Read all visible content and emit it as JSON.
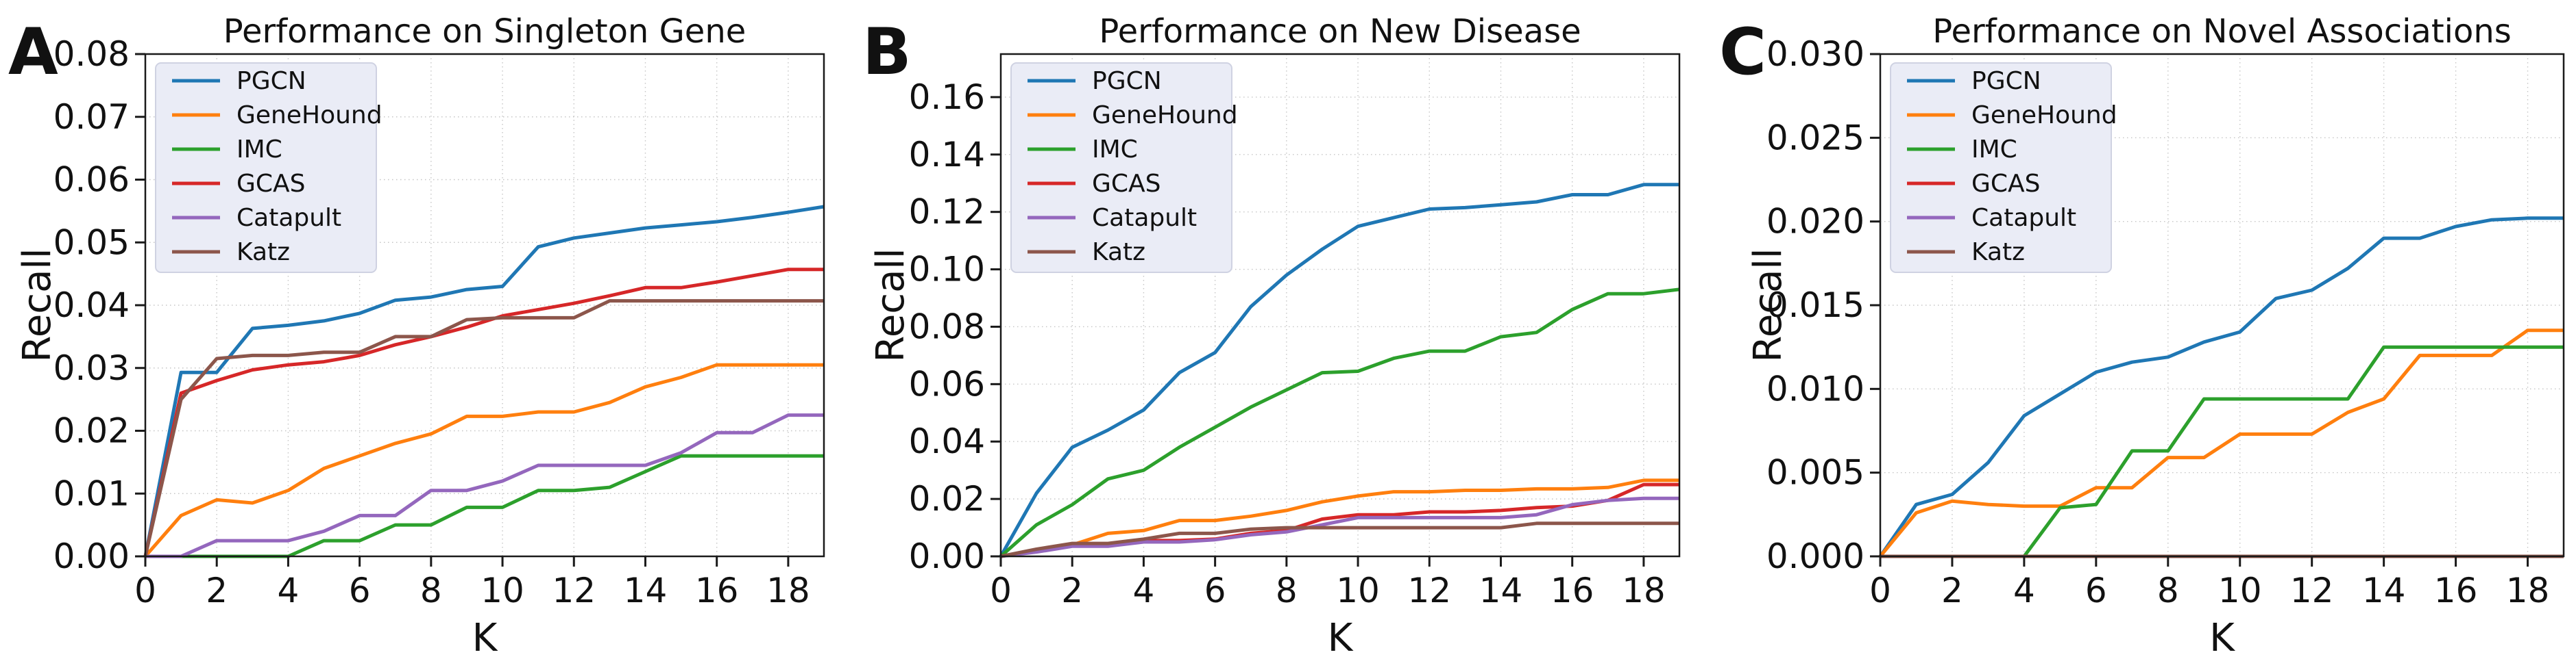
{
  "figure": {
    "background": "#ffffff",
    "text_color": "#111111",
    "grid_color": "#c6c6c6",
    "spine_color": "#1a1a1a",
    "legend_bg": "#eaecf6",
    "legend_border": "#cfd2e2"
  },
  "chart_data": [
    {
      "type": "line",
      "panel_label": "A",
      "title": "Performance on Singleton Gene",
      "xlabel": "K",
      "ylabel": "Recall",
      "xlim": [
        0,
        19
      ],
      "ylim": [
        0,
        0.08
      ],
      "grid": "dotted",
      "legend_position": "upper-left",
      "xticks": [
        0,
        2,
        4,
        6,
        8,
        10,
        12,
        14,
        16,
        18
      ],
      "xtick_labels": [
        "0",
        "2",
        "4",
        "6",
        "8",
        "10",
        "12",
        "14",
        "16",
        "18"
      ],
      "yticks": [
        0.0,
        0.01,
        0.02,
        0.03,
        0.04,
        0.05,
        0.06,
        0.07,
        0.08
      ],
      "ytick_labels": [
        "0.00",
        "0.01",
        "0.02",
        "0.03",
        "0.04",
        "0.05",
        "0.06",
        "0.07",
        "0.08"
      ],
      "x": [
        0,
        1,
        2,
        3,
        4,
        5,
        6,
        7,
        8,
        9,
        10,
        11,
        12,
        13,
        14,
        15,
        16,
        17,
        18,
        19
      ],
      "series": [
        {
          "name": "PGCN",
          "color": "#1f77b4",
          "values": [
            0,
            0.0293,
            0.0293,
            0.0363,
            0.0368,
            0.0375,
            0.0387,
            0.0408,
            0.0413,
            0.0425,
            0.043,
            0.0493,
            0.0507,
            0.0515,
            0.0523,
            0.0528,
            0.0533,
            0.054,
            0.0548,
            0.0557
          ]
        },
        {
          "name": "GeneHound",
          "color": "#ff7f0e",
          "values": [
            0,
            0.0065,
            0.009,
            0.0085,
            0.0105,
            0.014,
            0.016,
            0.018,
            0.0195,
            0.0223,
            0.0223,
            0.023,
            0.023,
            0.0245,
            0.027,
            0.0285,
            0.0305,
            0.0305,
            0.0305,
            0.0305
          ]
        },
        {
          "name": "IMC",
          "color": "#2ca02c",
          "values": [
            0,
            0,
            0,
            0,
            0,
            0.0025,
            0.0025,
            0.005,
            0.005,
            0.0078,
            0.0078,
            0.0105,
            0.0105,
            0.011,
            0.0135,
            0.016,
            0.016,
            0.016,
            0.016,
            0.016
          ]
        },
        {
          "name": "GCAS",
          "color": "#d62728",
          "values": [
            0,
            0.026,
            0.028,
            0.0297,
            0.0305,
            0.031,
            0.032,
            0.0337,
            0.035,
            0.0365,
            0.0383,
            0.0393,
            0.0403,
            0.0415,
            0.0428,
            0.0428,
            0.0437,
            0.0447,
            0.0457,
            0.0457
          ]
        },
        {
          "name": "Catapult",
          "color": "#9467bd",
          "values": [
            0,
            0,
            0.0025,
            0.0025,
            0.0025,
            0.004,
            0.0065,
            0.0065,
            0.0105,
            0.0105,
            0.012,
            0.0145,
            0.0145,
            0.0145,
            0.0145,
            0.0165,
            0.0197,
            0.0197,
            0.0225,
            0.0225
          ]
        },
        {
          "name": "Katz",
          "color": "#8c564b",
          "values": [
            0,
            0.025,
            0.0315,
            0.032,
            0.032,
            0.0325,
            0.0325,
            0.035,
            0.035,
            0.0377,
            0.038,
            0.038,
            0.038,
            0.0407,
            0.0407,
            0.0407,
            0.0407,
            0.0407,
            0.0407,
            0.0407
          ]
        }
      ]
    },
    {
      "type": "line",
      "panel_label": "B",
      "title": "Performance on New Disease",
      "xlabel": "K",
      "ylabel": "Recall",
      "xlim": [
        0,
        19
      ],
      "ylim": [
        0,
        0.175
      ],
      "grid": "dotted",
      "legend_position": "upper-left",
      "xticks": [
        0,
        2,
        4,
        6,
        8,
        10,
        12,
        14,
        16,
        18
      ],
      "xtick_labels": [
        "0",
        "2",
        "4",
        "6",
        "8",
        "10",
        "12",
        "14",
        "16",
        "18"
      ],
      "yticks": [
        0.0,
        0.02,
        0.04,
        0.06,
        0.08,
        0.1,
        0.12,
        0.14,
        0.16
      ],
      "ytick_labels": [
        "0.00",
        "0.02",
        "0.04",
        "0.06",
        "0.08",
        "0.10",
        "0.12",
        "0.14",
        "0.16"
      ],
      "x": [
        0,
        1,
        2,
        3,
        4,
        5,
        6,
        7,
        8,
        9,
        10,
        11,
        12,
        13,
        14,
        15,
        16,
        17,
        18,
        19
      ],
      "series": [
        {
          "name": "PGCN",
          "color": "#1f77b4",
          "values": [
            0,
            0.022,
            0.038,
            0.044,
            0.051,
            0.064,
            0.071,
            0.087,
            0.098,
            0.107,
            0.115,
            0.118,
            0.121,
            0.1215,
            0.1225,
            0.1235,
            0.126,
            0.126,
            0.1295,
            0.1295
          ]
        },
        {
          "name": "GeneHound",
          "color": "#ff7f0e",
          "values": [
            0,
            0.002,
            0.004,
            0.008,
            0.009,
            0.0125,
            0.0125,
            0.014,
            0.016,
            0.019,
            0.021,
            0.0225,
            0.0225,
            0.023,
            0.023,
            0.0235,
            0.0235,
            0.024,
            0.0265,
            0.0265
          ]
        },
        {
          "name": "IMC",
          "color": "#2ca02c",
          "values": [
            0,
            0.011,
            0.018,
            0.027,
            0.03,
            0.038,
            0.045,
            0.052,
            0.058,
            0.064,
            0.0645,
            0.069,
            0.0715,
            0.0715,
            0.0765,
            0.078,
            0.086,
            0.0915,
            0.0915,
            0.093
          ]
        },
        {
          "name": "GCAS",
          "color": "#d62728",
          "values": [
            0,
            0.002,
            0.004,
            0.004,
            0.0055,
            0.0055,
            0.006,
            0.008,
            0.009,
            0.013,
            0.0145,
            0.0145,
            0.0155,
            0.0155,
            0.016,
            0.017,
            0.0175,
            0.0195,
            0.025,
            0.025
          ]
        },
        {
          "name": "Catapult",
          "color": "#9467bd",
          "values": [
            0,
            0.0015,
            0.0035,
            0.0035,
            0.005,
            0.005,
            0.0058,
            0.0075,
            0.0085,
            0.011,
            0.0135,
            0.0135,
            0.0135,
            0.0135,
            0.0135,
            0.0145,
            0.018,
            0.0195,
            0.0202,
            0.0202
          ]
        },
        {
          "name": "Katz",
          "color": "#8c564b",
          "values": [
            0,
            0.0025,
            0.0045,
            0.0045,
            0.006,
            0.008,
            0.008,
            0.0095,
            0.01,
            0.01,
            0.01,
            0.01,
            0.01,
            0.01,
            0.01,
            0.0115,
            0.0115,
            0.0115,
            0.0115,
            0.0115
          ]
        }
      ]
    },
    {
      "type": "line",
      "panel_label": "C",
      "title": "Performance on Novel Associations",
      "xlabel": "K",
      "ylabel": "Recall",
      "xlim": [
        0,
        19
      ],
      "ylim": [
        0,
        0.03
      ],
      "grid": "dotted",
      "legend_position": "upper-left",
      "xticks": [
        0,
        2,
        4,
        6,
        8,
        10,
        12,
        14,
        16,
        18
      ],
      "xtick_labels": [
        "0",
        "2",
        "4",
        "6",
        "8",
        "10",
        "12",
        "14",
        "16",
        "18"
      ],
      "yticks": [
        0.0,
        0.005,
        0.01,
        0.015,
        0.02,
        0.025,
        0.03
      ],
      "ytick_labels": [
        "0.000",
        "0.005",
        "0.010",
        "0.015",
        "0.020",
        "0.025",
        "0.030"
      ],
      "x": [
        0,
        1,
        2,
        3,
        4,
        5,
        6,
        7,
        8,
        9,
        10,
        11,
        12,
        13,
        14,
        15,
        16,
        17,
        18,
        19
      ],
      "series": [
        {
          "name": "PGCN",
          "color": "#1f77b4",
          "values": [
            0,
            0.0031,
            0.0037,
            0.0056,
            0.0084,
            0.0097,
            0.011,
            0.0116,
            0.0119,
            0.0128,
            0.0134,
            0.0154,
            0.0159,
            0.0172,
            0.019,
            0.019,
            0.0197,
            0.0201,
            0.0202,
            0.0202
          ]
        },
        {
          "name": "GeneHound",
          "color": "#ff7f0e",
          "values": [
            0,
            0.0026,
            0.0033,
            0.0031,
            0.003,
            0.003,
            0.0041,
            0.0041,
            0.0059,
            0.0059,
            0.0073,
            0.0073,
            0.0073,
            0.0086,
            0.0094,
            0.012,
            0.012,
            0.012,
            0.0135,
            0.0135
          ]
        },
        {
          "name": "IMC",
          "color": "#2ca02c",
          "values": [
            0,
            0,
            0,
            0,
            0,
            0.0029,
            0.0031,
            0.0063,
            0.0063,
            0.0094,
            0.0094,
            0.0094,
            0.0094,
            0.0094,
            0.0125,
            0.0125,
            0.0125,
            0.0125,
            0.0125,
            0.0125
          ]
        },
        {
          "name": "GCAS",
          "color": "#d62728",
          "values": [
            0,
            0,
            0,
            0,
            0,
            0,
            0,
            0,
            0,
            0,
            0,
            0,
            0,
            0,
            0,
            0,
            0,
            0,
            0,
            0
          ]
        },
        {
          "name": "Catapult",
          "color": "#9467bd",
          "values": [
            0,
            0,
            0,
            0,
            0,
            0,
            0,
            0,
            0,
            0,
            0,
            0,
            0,
            0,
            0,
            0,
            0,
            0,
            0,
            0
          ]
        },
        {
          "name": "Katz",
          "color": "#8c564b",
          "values": [
            0,
            0,
            0,
            0,
            0,
            0,
            0,
            0,
            0,
            0,
            0,
            0,
            0,
            0,
            0,
            0,
            0,
            0,
            0,
            0
          ]
        }
      ]
    }
  ]
}
